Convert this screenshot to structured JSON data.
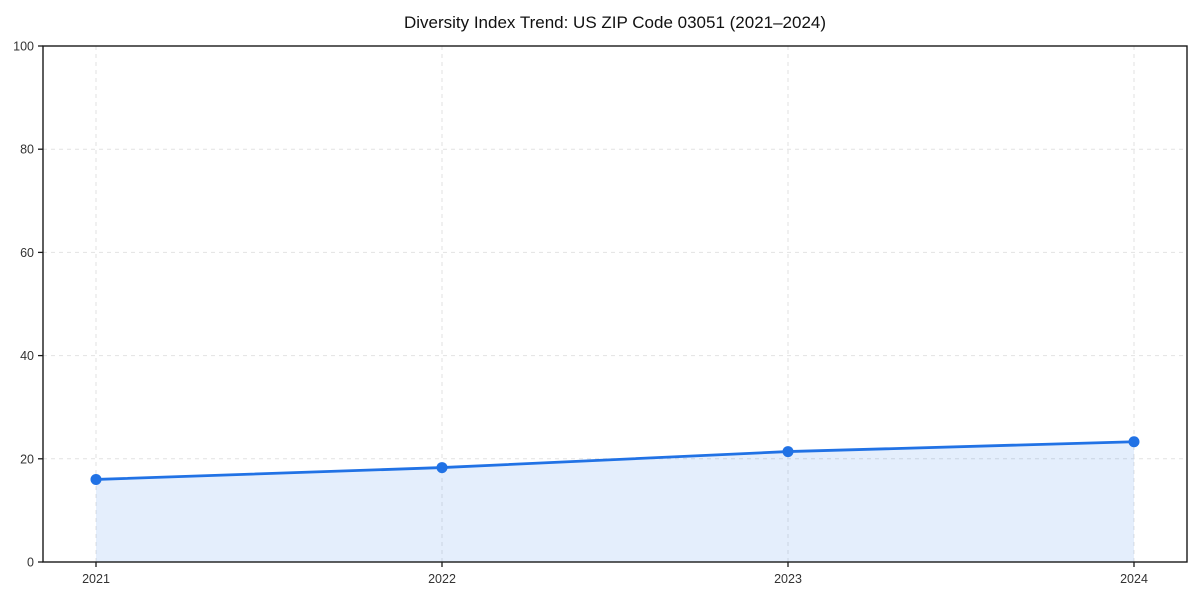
{
  "chart_data": {
    "type": "area",
    "title": "Diversity Index Trend: US ZIP Code 03051 (2021–2024)",
    "categories": [
      "2021",
      "2022",
      "2023",
      "2024"
    ],
    "series": [
      {
        "name": "Diversity Index",
        "values": [
          16.0,
          18.3,
          21.4,
          23.3
        ]
      }
    ],
    "xlabel": "",
    "ylabel": "",
    "ylim": [
      0,
      100
    ],
    "yticks": [
      0,
      20,
      40,
      60,
      80,
      100
    ],
    "grid": true,
    "grid_style": "dashed",
    "legend": "none",
    "marker": "circle",
    "colors": {
      "line": "#2172e5",
      "marker": "#2172e5",
      "fill": "#2172e5",
      "fill_opacity": "0.12",
      "grid": "#e2e2e2",
      "spine": "#1a1a1a",
      "tick_label": "#333333",
      "title": "#111111",
      "background": "#ffffff"
    }
  }
}
